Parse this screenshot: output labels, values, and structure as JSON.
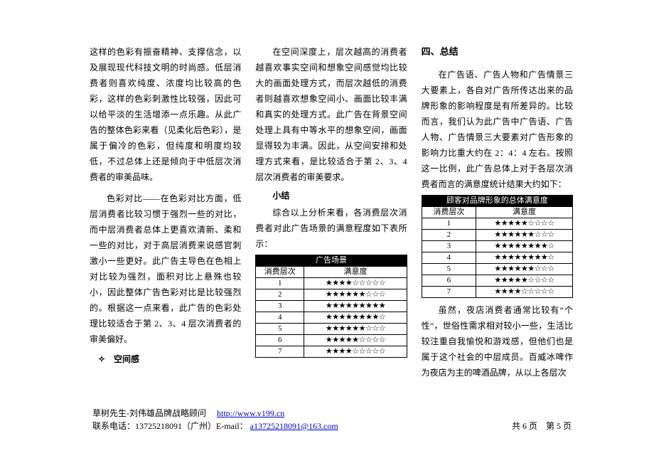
{
  "col1": {
    "p1": "这样的色彩有振奋精神、支撑信念，以及展现现代科技文明的时尚感。低层消费者则喜欢纯度、浓度均比较高的色彩，这样的色彩刺激性比较强，因此可以给平淡的生活增添一点乐趣。从此广告的整体色彩来看（见柔化后色彩），是属于偏冷的色彩，但纯度和明度均较低，不过总体上还是倾向于中低层次消费者的审美品味。",
    "p2": "色彩对比——在色彩对比方面，低层消费者比较习惯于强烈一些的对比，而中层消费者总体上更喜欢清新、柔和一些的对比，对于高层消费来说感官刺激小一些更好。此广告主导色在色相上对比较为强烈，面积对比上悬殊也较小，因此整体广告色彩对比是比较强烈的。根据这一点来看，此广告的色彩处理比较适合于第 2、3、4 层次消费者的审美偏好。",
    "bullet": "✧　空间感"
  },
  "col2": {
    "p1": "在空间深度上，层次越高的消费者越喜欢事实空间和想象空间感觉均比较大的画面处理方式，而层次越低的消费者则越喜欢想象空间小、画面比较丰满和真实的处理方式。此广告在背景空间处理上具有中等水平的想象空间，画面显得较为丰满。因此，从空间安排和处理方式来看，是比较适合于第 2、3、4 层次消费者的审美要求。",
    "sub": "小结",
    "p2": "综合以上分析来看，各消费层次消费者对此广告场景的满意程度如下表所示：",
    "table": {
      "title": "广告场景",
      "col_label_left": "消费层次",
      "col_label_right": "满意度",
      "rows": [
        {
          "level": "1",
          "filled": 4,
          "total": 9
        },
        {
          "level": "2",
          "filled": 6,
          "total": 9
        },
        {
          "level": "3",
          "filled": 9,
          "total": 9
        },
        {
          "level": "4",
          "filled": 8,
          "total": 9
        },
        {
          "level": "5",
          "filled": 6,
          "total": 9
        },
        {
          "level": "6",
          "filled": 5,
          "total": 9
        },
        {
          "level": "7",
          "filled": 4,
          "total": 9
        }
      ]
    }
  },
  "col3": {
    "title": "四、总结",
    "p1": "在广告语、广告人物和广告情景三大要素上，各自对广告所传达出来的品牌形象的影响程度是有所差异的。比较而言，我们认为此广告中广告语、广告人物、广告情景三大要素对广告形象的影响力比重大约在 2：4：4 左右。按照这一比例，此广告总体上对于各层次消费者而言的满意度统计结果大约如下：",
    "table": {
      "title": "顾客对品牌形象的总体满意度",
      "col_label_left": "消费层次",
      "col_label_right": "满意度",
      "rows": [
        {
          "level": "1",
          "filled": 5,
          "total": 9
        },
        {
          "level": "2",
          "filled": 6,
          "total": 9
        },
        {
          "level": "3",
          "filled": 8,
          "total": 9
        },
        {
          "level": "4",
          "filled": 8,
          "total": 9
        },
        {
          "level": "5",
          "filled": 6,
          "total": 9
        },
        {
          "level": "6",
          "filled": 5,
          "total": 9
        },
        {
          "level": "7",
          "filled": 4,
          "total": 9
        }
      ]
    },
    "p2": "虽然，夜店消费者通常比较有“个性”，世俗性需求相对较小一些，生活比较注重自我愉悦和游戏感，但他们也是属于这个社会的中层成员。百威冰啤作为夜店为主的啤酒品牌，从以上各层次"
  },
  "footer": {
    "author": "草树先生-刘伟雄品牌战略顾问　",
    "url": "http://www.v199.cn",
    "contact_prefix": "联系电话：13725218091（广州）E-mail：",
    "email": "a13725218091@163.com",
    "pager": "共 6 页　第 5 页"
  }
}
